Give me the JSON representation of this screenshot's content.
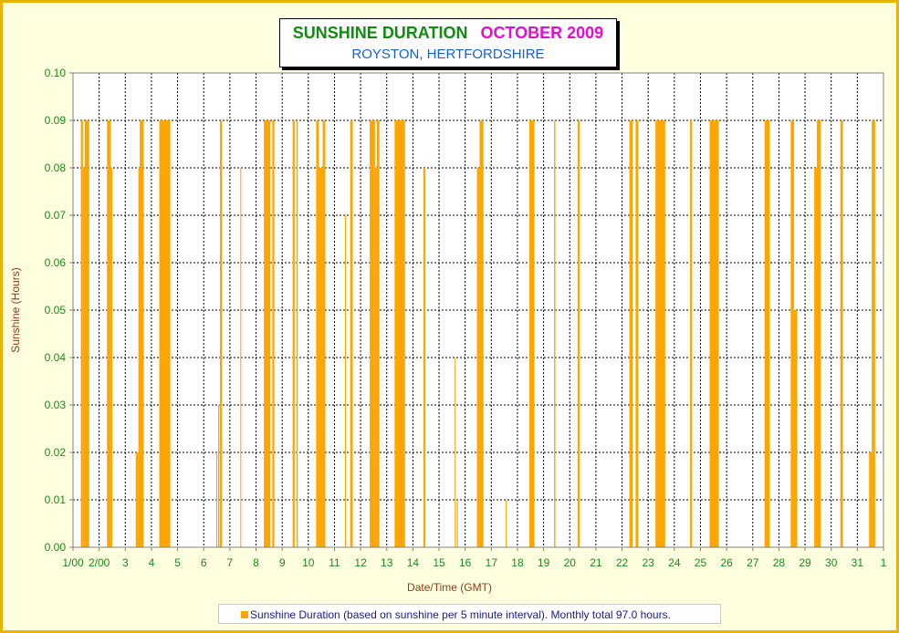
{
  "chart_data": {
    "type": "bar",
    "title": "SUNSHINE DURATION",
    "title_month": "OCTOBER 2009",
    "subtitle": "ROYSTON, HERTFORDSHIRE",
    "xlabel": "Date/Time (GMT)",
    "ylabel": "Sunshine (Hours)",
    "ylim": [
      0,
      0.1
    ],
    "y_ticks": [
      "0.00",
      "0.01",
      "0.02",
      "0.03",
      "0.04",
      "0.05",
      "0.06",
      "0.07",
      "0.08",
      "0.09",
      "0.10"
    ],
    "xlim": [
      1,
      32
    ],
    "x_ticks": [
      "1/00",
      "2/00",
      "3",
      "4",
      "5",
      "6",
      "7",
      "8",
      "9",
      "10",
      "11",
      "12",
      "13",
      "14",
      "15",
      "16",
      "17",
      "18",
      "19",
      "20",
      "21",
      "22",
      "23",
      "24",
      "25",
      "26",
      "27",
      "28",
      "29",
      "30",
      "31",
      "1"
    ],
    "grid": true,
    "series": [
      {
        "name": "Sunshine Duration",
        "color": "#ffa500",
        "blocks": [
          {
            "start": 1.3,
            "end": 1.38,
            "value": 0.09
          },
          {
            "start": 1.38,
            "end": 1.45,
            "value": 0.08
          },
          {
            "start": 1.45,
            "end": 1.62,
            "value": 0.09
          },
          {
            "start": 2.3,
            "end": 2.44,
            "value": 0.09
          },
          {
            "start": 2.44,
            "end": 2.5,
            "value": 0.08
          },
          {
            "start": 3.4,
            "end": 3.5,
            "value": 0.02
          },
          {
            "start": 3.5,
            "end": 3.55,
            "value": 0.08
          },
          {
            "start": 3.55,
            "end": 3.7,
            "value": 0.09
          },
          {
            "start": 4.3,
            "end": 4.72,
            "value": 0.09
          },
          {
            "start": 6.48,
            "end": 6.52,
            "value": 0.02
          },
          {
            "start": 6.55,
            "end": 6.6,
            "value": 0.03
          },
          {
            "start": 6.62,
            "end": 6.7,
            "value": 0.09
          },
          {
            "start": 7.4,
            "end": 7.43,
            "value": 0.08
          },
          {
            "start": 8.3,
            "end": 8.45,
            "value": 0.09
          },
          {
            "start": 8.45,
            "end": 8.55,
            "value": 0.09
          },
          {
            "start": 8.62,
            "end": 8.7,
            "value": 0.09
          },
          {
            "start": 9.4,
            "end": 9.48,
            "value": 0.09
          },
          {
            "start": 9.55,
            "end": 9.6,
            "value": 0.09
          },
          {
            "start": 10.3,
            "end": 10.4,
            "value": 0.09
          },
          {
            "start": 10.4,
            "end": 10.55,
            "value": 0.08
          },
          {
            "start": 10.55,
            "end": 10.65,
            "value": 0.09
          },
          {
            "start": 11.4,
            "end": 11.44,
            "value": 0.07
          },
          {
            "start": 11.6,
            "end": 11.7,
            "value": 0.09
          },
          {
            "start": 12.35,
            "end": 12.55,
            "value": 0.09
          },
          {
            "start": 12.55,
            "end": 12.62,
            "value": 0.08
          },
          {
            "start": 12.62,
            "end": 12.72,
            "value": 0.09
          },
          {
            "start": 13.3,
            "end": 13.7,
            "value": 0.09
          },
          {
            "start": 14.4,
            "end": 14.48,
            "value": 0.08
          },
          {
            "start": 15.6,
            "end": 15.63,
            "value": 0.04
          },
          {
            "start": 15.68,
            "end": 15.72,
            "value": 0.01
          },
          {
            "start": 16.45,
            "end": 16.55,
            "value": 0.08
          },
          {
            "start": 16.55,
            "end": 16.7,
            "value": 0.09
          },
          {
            "start": 17.55,
            "end": 17.58,
            "value": 0.01
          },
          {
            "start": 18.45,
            "end": 18.65,
            "value": 0.09
          },
          {
            "start": 19.4,
            "end": 19.45,
            "value": 0.09
          },
          {
            "start": 20.3,
            "end": 20.38,
            "value": 0.09
          },
          {
            "start": 22.28,
            "end": 22.4,
            "value": 0.09
          },
          {
            "start": 22.52,
            "end": 22.62,
            "value": 0.09
          },
          {
            "start": 23.28,
            "end": 23.65,
            "value": 0.09
          },
          {
            "start": 24.6,
            "end": 24.68,
            "value": 0.09
          },
          {
            "start": 25.35,
            "end": 25.7,
            "value": 0.09
          },
          {
            "start": 27.45,
            "end": 27.65,
            "value": 0.09
          },
          {
            "start": 28.45,
            "end": 28.58,
            "value": 0.09
          },
          {
            "start": 28.58,
            "end": 28.7,
            "value": 0.05
          },
          {
            "start": 29.35,
            "end": 29.45,
            "value": 0.08
          },
          {
            "start": 29.45,
            "end": 29.6,
            "value": 0.09
          },
          {
            "start": 30.35,
            "end": 30.45,
            "value": 0.09
          },
          {
            "start": 31.45,
            "end": 31.55,
            "value": 0.02
          },
          {
            "start": 31.55,
            "end": 31.68,
            "value": 0.09
          }
        ]
      }
    ],
    "legend": {
      "placement": "bottom",
      "text": "Sunshine Duration (based on sunshine per 5 minute interval). Monthly total 97.0 hours."
    }
  }
}
